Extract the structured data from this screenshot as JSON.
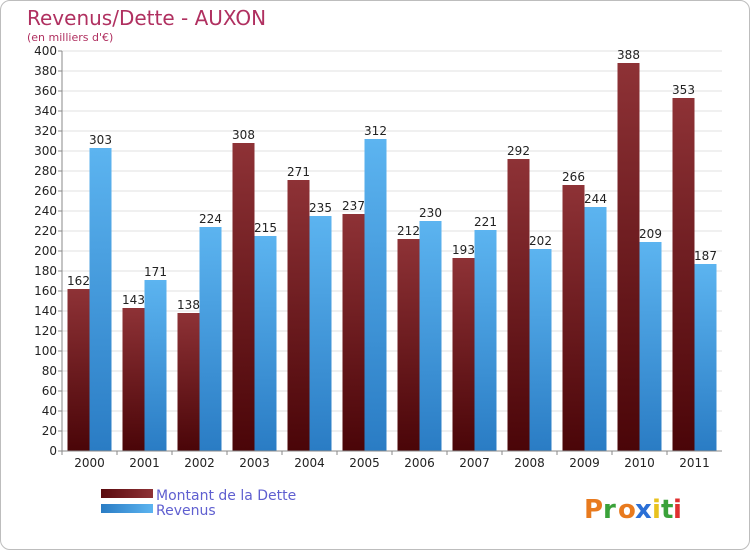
{
  "chart_data": {
    "type": "bar",
    "title": "Revenus/Dette - AUXON",
    "subtitle": "(en milliers d'€)",
    "categories": [
      "2000",
      "2001",
      "2002",
      "2003",
      "2004",
      "2005",
      "2006",
      "2007",
      "2008",
      "2009",
      "2010",
      "2011"
    ],
    "series": [
      {
        "name": "Montant de la Dette",
        "values": [
          162,
          143,
          138,
          308,
          271,
          237,
          212,
          193,
          292,
          266,
          388,
          353
        ],
        "color": "#7a1f24"
      },
      {
        "name": "Revenus",
        "values": [
          303,
          171,
          224,
          215,
          235,
          312,
          230,
          221,
          202,
          244,
          209,
          187
        ],
        "color": "#4aa3e6"
      }
    ],
    "ylim": [
      0,
      400
    ],
    "ytick_step": 20,
    "grid": true,
    "legend_position": "bottom-left"
  },
  "logo": {
    "text": "Proxiti",
    "colors": [
      "#e87a1e",
      "#3aa23a",
      "#e87a1e",
      "#2a6fd6",
      "#e8c21e",
      "#3aa23a",
      "#e03030"
    ]
  }
}
